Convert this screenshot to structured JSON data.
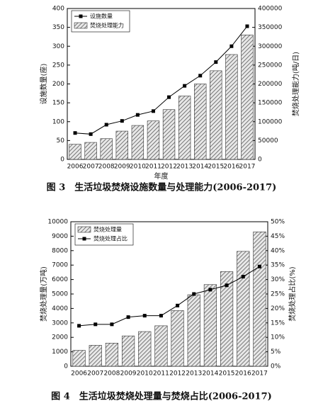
{
  "chart_data": [
    {
      "type": "combo",
      "caption": "图 3　生活垃圾焚烧设施数量与处理能力(2006-2017)",
      "x_label": "年度",
      "y_label": "设施数量(座)",
      "y2_label": "焚烧处理能力(吨/日)",
      "categories": [
        "2006",
        "2007",
        "2008",
        "2009",
        "2010",
        "2011",
        "2012",
        "2013",
        "2014",
        "2015",
        "2016",
        "2017"
      ],
      "series": [
        {
          "name": "设施数量",
          "type": "line",
          "color": "#000000",
          "values": [
            70,
            67,
            92,
            102,
            118,
            128,
            165,
            195,
            222,
            258,
            300,
            353
          ]
        },
        {
          "name": "焚烧处理能力",
          "type": "bar",
          "axis": "y2",
          "color": "#777777",
          "values": [
            40000,
            45000,
            55000,
            75000,
            90000,
            102000,
            132000,
            168000,
            200000,
            235000,
            278000,
            330000
          ]
        }
      ],
      "ylim": [
        0,
        400
      ],
      "yticks": [
        0,
        50,
        100,
        150,
        200,
        250,
        300,
        350,
        400
      ],
      "y2lim": [
        0,
        400000
      ],
      "y2ticks": [
        0,
        50000,
        100000,
        150000,
        200000,
        250000,
        300000,
        350000,
        400000
      ],
      "legend": "top-left"
    },
    {
      "type": "combo",
      "caption": "图 4　生活垃圾焚烧处理量与焚烧占比(2006-2017)",
      "y_label": "焚烧处理量(万吨)",
      "y2_label": "焚烧处理占比(%)",
      "categories": [
        "2006",
        "2007",
        "2008",
        "2009",
        "2010",
        "2011",
        "2012",
        "2013",
        "2014",
        "2015",
        "2016",
        "2017"
      ],
      "series": [
        {
          "name": "焚烧处理量",
          "type": "bar",
          "color": "#777777",
          "values": [
            1100,
            1450,
            1600,
            2100,
            2400,
            2800,
            3850,
            4950,
            5650,
            6550,
            7950,
            9300
          ]
        },
        {
          "name": "焚烧处理占比",
          "type": "line",
          "axis": "y2",
          "color": "#000000",
          "values": [
            14,
            14.5,
            14.5,
            17,
            17.5,
            17.5,
            21,
            25,
            26.5,
            28,
            31,
            34.5
          ]
        }
      ],
      "ylim": [
        0,
        10000
      ],
      "yticks": [
        0,
        1000,
        2000,
        3000,
        4000,
        5000,
        6000,
        7000,
        8000,
        9000,
        10000
      ],
      "y2lim": [
        0,
        50
      ],
      "y2ticks": [
        {
          "value": 0,
          "label": "0%"
        },
        {
          "value": 5,
          "label": "5%"
        },
        {
          "value": 10,
          "label": "10%"
        },
        {
          "value": 15,
          "label": "15%"
        },
        {
          "value": 20,
          "label": "20%"
        },
        {
          "value": 25,
          "label": "25%"
        },
        {
          "value": 30,
          "label": "30%"
        },
        {
          "value": 35,
          "label": "35%"
        },
        {
          "value": 40,
          "label": "40%"
        },
        {
          "value": 45,
          "label": "45%"
        },
        {
          "value": 50,
          "label": "50%"
        }
      ],
      "legend": "top-left"
    }
  ]
}
